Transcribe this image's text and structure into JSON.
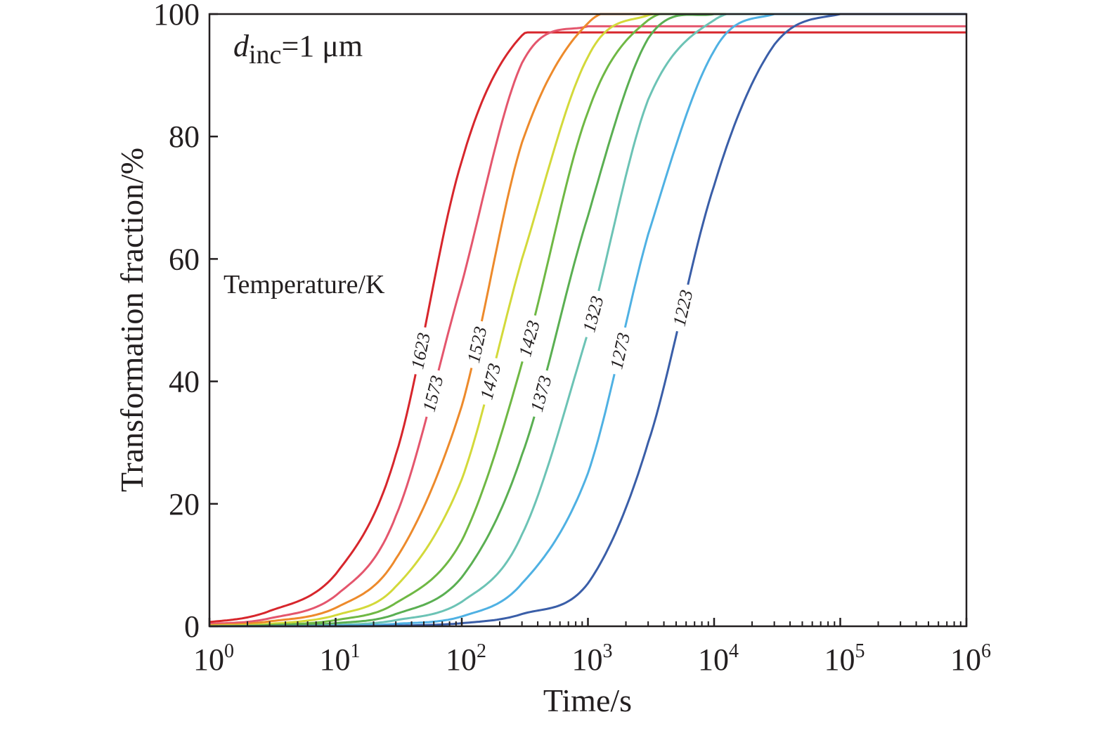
{
  "chart_data": {
    "type": "line",
    "annotation": {
      "symbol": "d",
      "subscript": "inc",
      "rest": "=1 μm"
    },
    "legend_title": "Temperature/K",
    "xlabel": "Time/s",
    "ylabel": "Transformation fraction/%",
    "x_scale": "log",
    "xlim": [
      1,
      1000000
    ],
    "ylim": [
      0,
      100
    ],
    "x_ticks": [
      {
        "base": "10",
        "exp": "0"
      },
      {
        "base": "10",
        "exp": "1"
      },
      {
        "base": "10",
        "exp": "2"
      },
      {
        "base": "10",
        "exp": "3"
      },
      {
        "base": "10",
        "exp": "4"
      },
      {
        "base": "10",
        "exp": "5"
      },
      {
        "base": "10",
        "exp": "6"
      }
    ],
    "y_ticks": [
      "0",
      "20",
      "40",
      "60",
      "80",
      "100"
    ],
    "grid": false,
    "x_samples": [
      1,
      3,
      10,
      30,
      100,
      300,
      1000,
      3000,
      10000,
      30000,
      100000,
      300000,
      1000000
    ],
    "series": [
      {
        "name": "1623",
        "color": "#d7262c",
        "plateau": 97,
        "values": [
          0.7,
          2.5,
          8.5,
          28,
          76,
          96.5,
          97,
          97,
          97,
          97,
          97,
          97,
          97
        ]
      },
      {
        "name": "1573",
        "color": "#e4566d",
        "plateau": 98,
        "values": [
          0.4,
          1.3,
          5,
          18,
          56,
          92,
          98,
          98,
          98,
          98,
          98,
          98,
          98
        ]
      },
      {
        "name": "1523",
        "color": "#ed8a2b",
        "plateau": 100,
        "values": [
          0.2,
          0.8,
          3,
          11,
          36,
          79,
          98.5,
          100,
          100,
          100,
          100,
          100,
          100
        ]
      },
      {
        "name": "1473",
        "color": "#d3d93a",
        "plateau": 100,
        "values": [
          0.1,
          0.4,
          1.8,
          6.5,
          24,
          60,
          93,
          99.8,
          100,
          100,
          100,
          100,
          100
        ]
      },
      {
        "name": "1423",
        "color": "#6fb844",
        "plateau": 100,
        "values": [
          0,
          0.2,
          1,
          3.8,
          14,
          43,
          84,
          99,
          100,
          100,
          100,
          100,
          100
        ]
      },
      {
        "name": "1373",
        "color": "#5aaf52",
        "plateau": 100,
        "values": [
          0,
          0.1,
          0.5,
          2,
          8,
          28,
          67,
          96,
          100,
          100,
          100,
          100,
          100
        ]
      },
      {
        "name": "1323",
        "color": "#6cc3b5",
        "plateau": 100,
        "values": [
          0,
          0,
          0.2,
          1,
          4,
          15,
          48,
          86,
          99,
          100,
          100,
          100,
          100
        ]
      },
      {
        "name": "1273",
        "color": "#4fb1e3",
        "plateau": 100,
        "values": [
          0,
          0,
          0.1,
          0.4,
          1.6,
          7,
          25,
          64,
          94,
          100,
          100,
          100,
          100
        ]
      },
      {
        "name": "1223",
        "color": "#3a5ea8",
        "plateau": 100,
        "values": [
          0,
          0,
          0,
          0.1,
          0.5,
          2,
          7,
          30,
          72,
          95,
          100,
          100,
          100
        ]
      }
    ]
  }
}
